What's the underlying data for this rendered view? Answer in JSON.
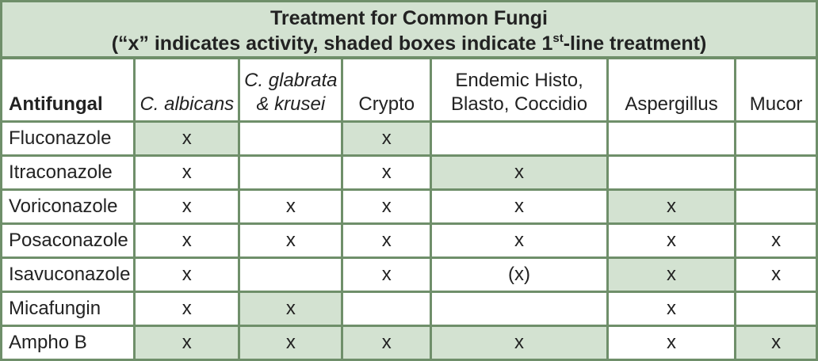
{
  "title": {
    "line1": "Treatment for Common Fungi",
    "line2_before": "(“x” indicates activity, shaded boxes indicate 1",
    "line2_sup": "st",
    "line2_after": "-line treatment)"
  },
  "columns": [
    {
      "line1": "Antifungal",
      "line2": "",
      "italic": false
    },
    {
      "line1": "C. albicans",
      "line2": "",
      "italic": true
    },
    {
      "line1": "C. glabrata",
      "line2": "& krusei",
      "italic": true
    },
    {
      "line1": "Crypto",
      "line2": "",
      "italic": false
    },
    {
      "line1": "Endemic Histo,",
      "line2": "Blasto, Coccidio",
      "italic": false
    },
    {
      "line1": "Aspergillus",
      "line2": "",
      "italic": false
    },
    {
      "line1": "Mucor",
      "line2": "",
      "italic": false
    }
  ],
  "rows": [
    {
      "drug": "Fluconazole",
      "cells": [
        "x",
        "",
        "x",
        "",
        "",
        ""
      ],
      "first_line": [
        true,
        false,
        true,
        false,
        false,
        false
      ]
    },
    {
      "drug": "Itraconazole",
      "cells": [
        "x",
        "",
        "x",
        "x",
        "",
        ""
      ],
      "first_line": [
        false,
        false,
        false,
        true,
        false,
        false
      ]
    },
    {
      "drug": "Voriconazole",
      "cells": [
        "x",
        "x",
        "x",
        "x",
        "x",
        ""
      ],
      "first_line": [
        false,
        false,
        false,
        false,
        true,
        false
      ]
    },
    {
      "drug": "Posaconazole",
      "cells": [
        "x",
        "x",
        "x",
        "x",
        "x",
        "x"
      ],
      "first_line": [
        false,
        false,
        false,
        false,
        false,
        false
      ]
    },
    {
      "drug": "Isavuconazole",
      "cells": [
        "x",
        "",
        "x",
        "(x)",
        "x",
        "x"
      ],
      "first_line": [
        false,
        false,
        false,
        false,
        true,
        false
      ]
    },
    {
      "drug": "Micafungin",
      "cells": [
        "x",
        "x",
        "",
        "",
        "x",
        ""
      ],
      "first_line": [
        false,
        true,
        false,
        false,
        false,
        false
      ]
    },
    {
      "drug": "Ampho B",
      "cells": [
        "x",
        "x",
        "x",
        "x",
        "x",
        "x"
      ],
      "first_line": [
        true,
        true,
        true,
        true,
        false,
        true
      ]
    }
  ],
  "colors": {
    "border": "#6f8f6a",
    "shade": "#d3e2d1",
    "background": "#ffffff"
  }
}
